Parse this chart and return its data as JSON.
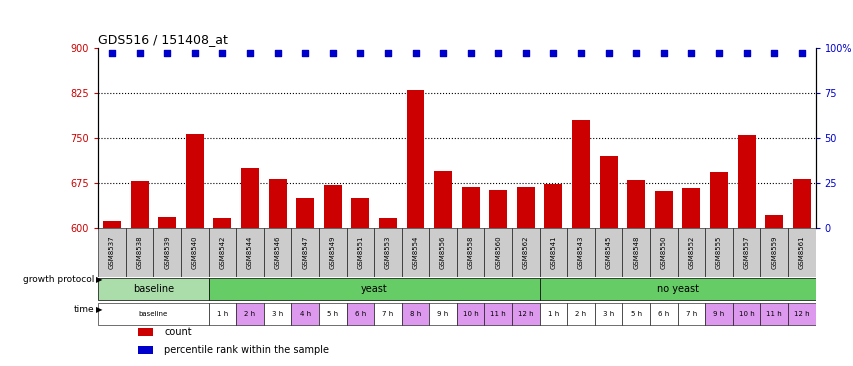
{
  "title": "GDS516 / 151408_at",
  "samples": [
    "GSM8537",
    "GSM8538",
    "GSM8539",
    "GSM8540",
    "GSM8542",
    "GSM8544",
    "GSM8546",
    "GSM8547",
    "GSM8549",
    "GSM8551",
    "GSM8553",
    "GSM8554",
    "GSM8556",
    "GSM8558",
    "GSM8560",
    "GSM8562",
    "GSM8541",
    "GSM8543",
    "GSM8545",
    "GSM8548",
    "GSM8550",
    "GSM8552",
    "GSM8555",
    "GSM8557",
    "GSM8559",
    "GSM8561"
  ],
  "bar_values": [
    612,
    678,
    618,
    756,
    617,
    700,
    681,
    649,
    672,
    649,
    617,
    829,
    695,
    668,
    663,
    668,
    673,
    779,
    720,
    680,
    661,
    666,
    693,
    754,
    622,
    682
  ],
  "percentile_values": [
    97,
    97,
    97,
    97,
    97,
    97,
    97,
    97,
    97,
    97,
    97,
    97,
    97,
    97,
    97,
    97,
    97,
    97,
    97,
    97,
    97,
    97,
    97,
    97,
    97,
    97
  ],
  "ylim_left": [
    600,
    900
  ],
  "ylim_right": [
    0,
    100
  ],
  "yticks_left": [
    600,
    675,
    750,
    825,
    900
  ],
  "yticks_right": [
    0,
    25,
    50,
    75,
    100
  ],
  "bar_color": "#cc0000",
  "dot_color": "#0000cc",
  "background_color": "#ffffff",
  "sample_box_color": "#cccccc",
  "growth_groups": [
    {
      "label": "baseline",
      "start": 0,
      "end": 4,
      "color": "#aaddaa"
    },
    {
      "label": "yeast",
      "start": 4,
      "end": 16,
      "color": "#66cc66"
    },
    {
      "label": "no yeast",
      "start": 16,
      "end": 26,
      "color": "#66cc66"
    }
  ],
  "time_cells": [
    {
      "label": "baseline",
      "start": 0,
      "end": 4,
      "color": "#ffffff"
    },
    {
      "label": "1 h",
      "start": 4,
      "end": 5,
      "color": "#ffffff"
    },
    {
      "label": "2 h",
      "start": 5,
      "end": 6,
      "color": "#dd99ee"
    },
    {
      "label": "3 h",
      "start": 6,
      "end": 7,
      "color": "#ffffff"
    },
    {
      "label": "4 h",
      "start": 7,
      "end": 8,
      "color": "#dd99ee"
    },
    {
      "label": "5 h",
      "start": 8,
      "end": 9,
      "color": "#ffffff"
    },
    {
      "label": "6 h",
      "start": 9,
      "end": 10,
      "color": "#dd99ee"
    },
    {
      "label": "7 h",
      "start": 10,
      "end": 11,
      "color": "#ffffff"
    },
    {
      "label": "8 h",
      "start": 11,
      "end": 12,
      "color": "#dd99ee"
    },
    {
      "label": "9 h",
      "start": 12,
      "end": 13,
      "color": "#ffffff"
    },
    {
      "label": "10 h",
      "start": 13,
      "end": 14,
      "color": "#dd99ee"
    },
    {
      "label": "11 h",
      "start": 14,
      "end": 15,
      "color": "#dd99ee"
    },
    {
      "label": "12 h",
      "start": 15,
      "end": 16,
      "color": "#dd99ee"
    },
    {
      "label": "1 h",
      "start": 16,
      "end": 17,
      "color": "#ffffff"
    },
    {
      "label": "2 h",
      "start": 17,
      "end": 18,
      "color": "#ffffff"
    },
    {
      "label": "3 h",
      "start": 18,
      "end": 19,
      "color": "#ffffff"
    },
    {
      "label": "5 h",
      "start": 19,
      "end": 20,
      "color": "#ffffff"
    },
    {
      "label": "6 h",
      "start": 20,
      "end": 21,
      "color": "#ffffff"
    },
    {
      "label": "7 h",
      "start": 21,
      "end": 22,
      "color": "#ffffff"
    },
    {
      "label": "9 h",
      "start": 22,
      "end": 23,
      "color": "#dd99ee"
    },
    {
      "label": "10 h",
      "start": 23,
      "end": 24,
      "color": "#dd99ee"
    },
    {
      "label": "11 h",
      "start": 24,
      "end": 25,
      "color": "#dd99ee"
    },
    {
      "label": "12 h",
      "start": 25,
      "end": 26,
      "color": "#dd99ee"
    }
  ],
  "legend": [
    {
      "color": "#cc0000",
      "label": "count"
    },
    {
      "color": "#0000cc",
      "label": "percentile rank within the sample"
    }
  ]
}
